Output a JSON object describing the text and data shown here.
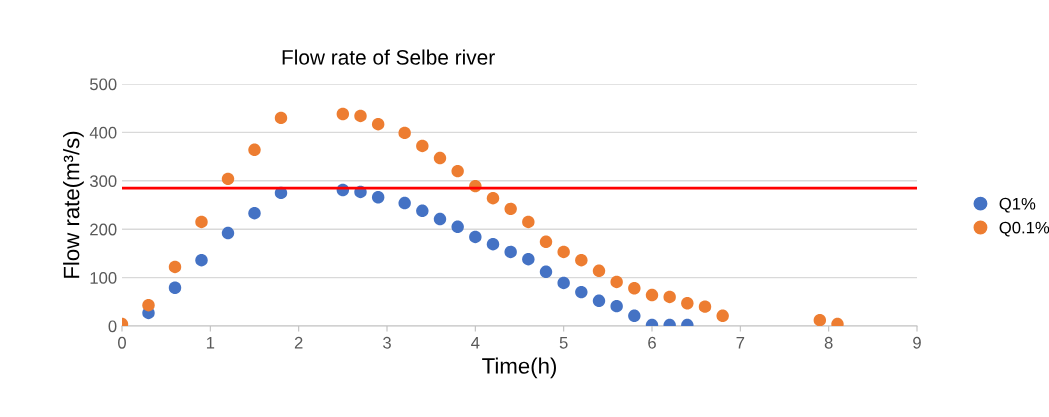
{
  "chart_data": {
    "type": "scatter",
    "title": "Flow rate of Selbe river",
    "xlabel": "Time(h)",
    "ylabel": "Flow rate(m³/s)",
    "xlim": [
      0,
      9
    ],
    "xticks": [
      0,
      1,
      2,
      3,
      4,
      5,
      6,
      7,
      8,
      9
    ],
    "ylim": [
      0,
      500
    ],
    "yticks": [
      0,
      100,
      200,
      300,
      400,
      500
    ],
    "grid": "y",
    "legend": "right",
    "marker": "circle",
    "ref_lines": [
      {
        "axis": "y",
        "value": 285,
        "color": "#ff0000"
      }
    ],
    "series": [
      {
        "name": "Q1%",
        "color": "#4472c4",
        "x": [
          0.3,
          0.6,
          0.9,
          1.2,
          1.5,
          1.8,
          2.5,
          2.7,
          2.9,
          3.2,
          3.4,
          3.6,
          3.8,
          4.0,
          4.2,
          4.4,
          4.6,
          4.8,
          5.0,
          5.2,
          5.4,
          5.6,
          5.8,
          6.0,
          6.2,
          6.4
        ],
        "values": [
          27,
          79,
          136,
          192,
          233,
          275,
          281,
          277,
          266,
          254,
          238,
          221,
          205,
          184,
          169,
          153,
          138,
          112,
          89,
          70,
          52,
          41,
          21,
          2,
          2,
          2
        ]
      },
      {
        "name": "Q0.1%",
        "color": "#ed7d31",
        "x": [
          0,
          0.3,
          0.6,
          0.9,
          1.2,
          1.5,
          1.8,
          2.5,
          2.7,
          2.9,
          3.2,
          3.4,
          3.6,
          3.8,
          4.0,
          4.2,
          4.4,
          4.6,
          4.8,
          5.0,
          5.2,
          5.4,
          5.6,
          5.8,
          6.0,
          6.2,
          6.4,
          6.6,
          6.8,
          7.9,
          8.1
        ],
        "values": [
          4,
          43,
          122,
          215,
          304,
          364,
          430,
          438,
          434,
          417,
          399,
          372,
          347,
          320,
          289,
          264,
          242,
          215,
          174,
          153,
          136,
          114,
          91,
          78,
          64,
          60,
          47,
          40,
          21,
          12,
          4
        ]
      }
    ]
  }
}
